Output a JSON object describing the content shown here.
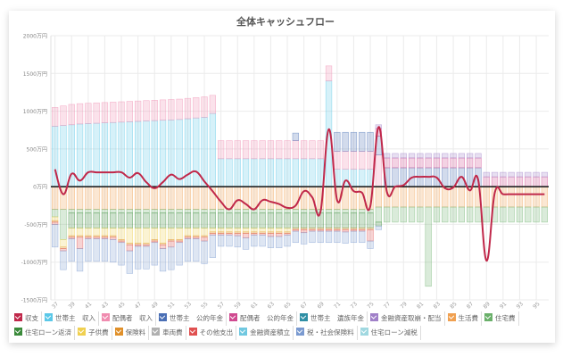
{
  "chart_data": {
    "type": "bar",
    "title": "全体キャッシュフロー",
    "ylim": [
      -1500,
      2000
    ],
    "y_ticks": [
      "2000万円",
      "1500万円",
      "1000万円",
      "500万円",
      "0万円",
      "-500万円",
      "-1000万円",
      "-1500万円"
    ],
    "y_tick_values": [
      2000,
      1500,
      1000,
      500,
      0,
      -500,
      -1000,
      -1500
    ],
    "x_tick_labels": [
      "37",
      "39",
      "41",
      "43",
      "45",
      "47",
      "49",
      "51",
      "53",
      "55",
      "57",
      "59",
      "61",
      "63",
      "65",
      "67",
      "69",
      "71",
      "73",
      "75",
      "77",
      "79",
      "81",
      "83",
      "85",
      "87",
      "89",
      "91",
      "93",
      "95"
    ],
    "ages_start": 37,
    "ages_end": 96,
    "legend_position": "bottom",
    "series": [
      {
        "name": "世帯主　収入",
        "kind": "income",
        "color": "#5bc8e8",
        "values": [
          800,
          810,
          820,
          830,
          835,
          840,
          845,
          850,
          855,
          860,
          865,
          870,
          875,
          880,
          885,
          890,
          900,
          910,
          920,
          970,
          370,
          370,
          370,
          370,
          370,
          370,
          370,
          370,
          370,
          370,
          370,
          370,
          370,
          1400,
          230,
          230,
          230,
          230,
          230,
          0,
          0,
          0,
          0,
          0,
          0,
          0,
          0,
          0,
          0,
          0,
          0,
          0,
          0,
          0,
          0,
          0,
          0,
          0,
          0,
          0
        ]
      },
      {
        "name": "配偶者　収入",
        "kind": "income",
        "color": "#f08cb0",
        "values": [
          250,
          260,
          270,
          270,
          270,
          270,
          270,
          270,
          270,
          270,
          270,
          270,
          270,
          270,
          270,
          270,
          270,
          270,
          270,
          240,
          240,
          240,
          240,
          240,
          240,
          240,
          240,
          240,
          240,
          240,
          240,
          240,
          240,
          200,
          240,
          240,
          240,
          240,
          240,
          420,
          0,
          0,
          0,
          0,
          0,
          0,
          0,
          0,
          0,
          0,
          0,
          0,
          0,
          0,
          0,
          0,
          0,
          0,
          0,
          0
        ]
      },
      {
        "name": "世帯主　公的年金",
        "kind": "income",
        "color": "#4a6fb5",
        "values": [
          0,
          0,
          0,
          0,
          0,
          0,
          0,
          0,
          0,
          0,
          0,
          0,
          0,
          0,
          0,
          0,
          0,
          0,
          0,
          0,
          0,
          0,
          0,
          0,
          0,
          0,
          0,
          0,
          0,
          100,
          0,
          0,
          0,
          0,
          250,
          250,
          250,
          250,
          250,
          250,
          250,
          250,
          250,
          250,
          250,
          250,
          250,
          250,
          250,
          250,
          250,
          250,
          0,
          0,
          0,
          0,
          0,
          0,
          0,
          0
        ]
      },
      {
        "name": "配偶者　公的年金",
        "kind": "income",
        "color": "#d04a90",
        "values": [
          0,
          0,
          0,
          0,
          0,
          0,
          0,
          0,
          0,
          0,
          0,
          0,
          0,
          0,
          0,
          0,
          0,
          0,
          0,
          0,
          0,
          0,
          0,
          0,
          0,
          0,
          0,
          0,
          0,
          0,
          0,
          0,
          0,
          0,
          0,
          0,
          0,
          0,
          0,
          100,
          130,
          130,
          130,
          130,
          130,
          130,
          130,
          130,
          130,
          130,
          130,
          130,
          130,
          130,
          130,
          130,
          130,
          130,
          130,
          130
        ]
      },
      {
        "name": "世帯主　遺族年金",
        "kind": "income",
        "color": "#2f8fa5",
        "values": [
          0,
          0,
          0,
          0,
          0,
          0,
          0,
          0,
          0,
          0,
          0,
          0,
          0,
          0,
          0,
          0,
          0,
          0,
          0,
          0,
          0,
          0,
          0,
          0,
          0,
          0,
          0,
          0,
          0,
          0,
          0,
          0,
          0,
          0,
          0,
          0,
          0,
          0,
          0,
          0,
          0,
          0,
          0,
          0,
          0,
          0,
          0,
          0,
          0,
          0,
          0,
          0,
          0,
          0,
          0,
          0,
          0,
          0,
          0,
          0
        ]
      },
      {
        "name": "金融資産取崩・配当",
        "kind": "income",
        "color": "#a080c8",
        "values": [
          0,
          0,
          0,
          0,
          0,
          0,
          0,
          0,
          0,
          0,
          0,
          0,
          0,
          0,
          0,
          0,
          0,
          0,
          0,
          0,
          0,
          0,
          0,
          0,
          0,
          0,
          0,
          0,
          0,
          0,
          0,
          0,
          0,
          0,
          0,
          0,
          0,
          0,
          0,
          50,
          60,
          60,
          60,
          60,
          60,
          60,
          60,
          60,
          60,
          60,
          60,
          60,
          60,
          60,
          60,
          60,
          60,
          60,
          60,
          60
        ]
      },
      {
        "name": "生活費",
        "kind": "expense",
        "color": "#f0a050",
        "values": [
          -300,
          -300,
          -300,
          -300,
          -300,
          -300,
          -300,
          -300,
          -300,
          -300,
          -300,
          -300,
          -300,
          -300,
          -300,
          -300,
          -300,
          -300,
          -300,
          -300,
          -300,
          -300,
          -300,
          -300,
          -300,
          -300,
          -300,
          -300,
          -300,
          -300,
          -300,
          -300,
          -300,
          -300,
          -300,
          -300,
          -300,
          -300,
          -300,
          -270,
          -270,
          -270,
          -270,
          -270,
          -270,
          -270,
          -270,
          -270,
          -270,
          -270,
          -270,
          -270,
          -270,
          -270,
          -270,
          -270,
          -270,
          -270,
          -270,
          -270
        ]
      },
      {
        "name": "住宅費",
        "kind": "expense",
        "color": "#6ab06a",
        "values": [
          -100,
          -400,
          -50,
          -50,
          -50,
          -50,
          -50,
          -50,
          -50,
          -50,
          -50,
          -50,
          -50,
          -50,
          -50,
          -50,
          -50,
          -50,
          -50,
          -50,
          -50,
          -50,
          -50,
          -50,
          -50,
          -50,
          -50,
          -50,
          -50,
          -50,
          -50,
          -50,
          -50,
          -50,
          -50,
          -50,
          -50,
          -50,
          -50,
          -200,
          -200,
          -200,
          -200,
          -200,
          -200,
          -1050,
          -200,
          -200,
          -200,
          -200,
          -200,
          -200,
          -200,
          -200,
          -200,
          -200,
          -200,
          -200,
          -200,
          -200
        ]
      },
      {
        "name": "住宅ローン返済",
        "kind": "expense",
        "color": "#3a8a3a",
        "values": [
          0,
          0,
          -200,
          -200,
          -200,
          -200,
          -200,
          -200,
          -200,
          -200,
          -200,
          -200,
          -200,
          -200,
          -200,
          -200,
          -200,
          -200,
          -200,
          -200,
          -200,
          -200,
          -200,
          -200,
          -200,
          -200,
          -200,
          -200,
          -200,
          -200,
          -200,
          -200,
          -200,
          -200,
          -200,
          -200,
          -200,
          -200,
          -200,
          -50,
          0,
          0,
          0,
          0,
          0,
          0,
          0,
          0,
          0,
          0,
          0,
          0,
          0,
          0,
          0,
          0,
          0,
          0,
          0,
          0
        ]
      },
      {
        "name": "子供費",
        "kind": "expense",
        "color": "#f0d050",
        "values": [
          -50,
          -100,
          -100,
          -100,
          -100,
          -100,
          -100,
          -100,
          -150,
          -200,
          -200,
          -200,
          -150,
          -200,
          -150,
          -150,
          -100,
          -100,
          -100,
          -50,
          -50,
          -50,
          -50,
          -50,
          -50,
          -50,
          -50,
          -50,
          -50,
          0,
          0,
          0,
          0,
          0,
          0,
          0,
          0,
          0,
          0,
          0,
          0,
          0,
          0,
          0,
          0,
          0,
          0,
          0,
          0,
          0,
          0,
          0,
          0,
          0,
          0,
          0,
          0,
          0,
          0,
          0
        ]
      },
      {
        "name": "保険料",
        "kind": "expense",
        "color": "#e0902a",
        "values": [
          -20,
          -20,
          -20,
          -20,
          -20,
          -20,
          -20,
          -20,
          -20,
          -20,
          -20,
          -20,
          -20,
          -20,
          -20,
          -20,
          -20,
          -20,
          -20,
          -20,
          -20,
          -20,
          -20,
          -20,
          -20,
          -20,
          -20,
          -20,
          -20,
          -20,
          -20,
          -20,
          -20,
          -20,
          -20,
          -20,
          -20,
          -20,
          -20,
          0,
          0,
          0,
          0,
          0,
          0,
          0,
          0,
          0,
          0,
          0,
          0,
          0,
          0,
          0,
          0,
          0,
          0,
          0,
          0,
          0
        ]
      },
      {
        "name": "車両費",
        "kind": "expense",
        "color": "#b0b0b0",
        "values": [
          0,
          0,
          0,
          0,
          0,
          0,
          0,
          0,
          0,
          0,
          0,
          0,
          0,
          0,
          0,
          0,
          0,
          0,
          0,
          0,
          0,
          0,
          0,
          0,
          0,
          0,
          0,
          0,
          0,
          0,
          0,
          0,
          0,
          0,
          0,
          0,
          0,
          0,
          0,
          0,
          0,
          0,
          0,
          0,
          0,
          0,
          0,
          0,
          0,
          0,
          0,
          0,
          0,
          0,
          0,
          0,
          0,
          0,
          0,
          0
        ]
      },
      {
        "name": "その他支出",
        "kind": "expense",
        "color": "#e05050",
        "values": [
          -30,
          -30,
          -20,
          -150,
          -20,
          -20,
          -20,
          -30,
          -20,
          -80,
          -20,
          -20,
          -20,
          -50,
          -80,
          -20,
          -20,
          -20,
          -50,
          -20,
          -20,
          -20,
          -30,
          -60,
          -20,
          -20,
          -40,
          -40,
          -20,
          -20,
          -40,
          -20,
          -20,
          -20,
          -20,
          -30,
          -20,
          -20,
          -150,
          0,
          0,
          0,
          0,
          0,
          0,
          0,
          0,
          0,
          0,
          0,
          0,
          0,
          0,
          0,
          0,
          0,
          0,
          0,
          0,
          0
        ]
      },
      {
        "name": "金融資産積立",
        "kind": "expense",
        "color": "#70c8e0",
        "values": [
          0,
          0,
          0,
          0,
          0,
          0,
          0,
          0,
          0,
          0,
          0,
          0,
          0,
          0,
          0,
          0,
          0,
          0,
          0,
          0,
          0,
          0,
          0,
          0,
          0,
          0,
          0,
          0,
          0,
          0,
          0,
          0,
          0,
          0,
          0,
          0,
          0,
          0,
          0,
          0,
          0,
          0,
          0,
          0,
          0,
          0,
          0,
          0,
          0,
          0,
          0,
          0,
          0,
          0,
          0,
          0,
          0,
          0,
          0,
          0
        ]
      },
      {
        "name": "税・社会保険料",
        "kind": "expense",
        "color": "#7a9ad0",
        "values": [
          -300,
          -250,
          -300,
          -300,
          -300,
          -300,
          -300,
          -300,
          -300,
          -300,
          -300,
          -300,
          -300,
          -300,
          -300,
          -300,
          -300,
          -300,
          -300,
          -300,
          -150,
          -150,
          -150,
          -150,
          -150,
          -150,
          -150,
          -150,
          -150,
          -150,
          -150,
          -150,
          -150,
          -150,
          -150,
          -150,
          -150,
          -150,
          -100,
          -50,
          0,
          0,
          0,
          0,
          0,
          0,
          0,
          0,
          0,
          0,
          0,
          0,
          0,
          0,
          0,
          0,
          0,
          0,
          0,
          0
        ]
      },
      {
        "name": "住宅ローン減税",
        "kind": "income",
        "color": "#a0d8e0",
        "values": [
          0,
          0,
          0,
          0,
          0,
          0,
          0,
          0,
          0,
          0,
          0,
          0,
          0,
          0,
          0,
          0,
          0,
          0,
          0,
          0,
          0,
          0,
          0,
          0,
          0,
          0,
          0,
          0,
          0,
          0,
          0,
          0,
          0,
          0,
          0,
          0,
          0,
          0,
          0,
          0,
          0,
          0,
          0,
          0,
          0,
          0,
          0,
          0,
          0,
          0,
          0,
          0,
          0,
          0,
          0,
          0,
          0,
          0,
          0,
          0
        ]
      }
    ],
    "balance": {
      "name": "収支",
      "color": "#c0284a",
      "values": [
        230,
        -100,
        170,
        80,
        190,
        190,
        190,
        190,
        190,
        120,
        180,
        60,
        -20,
        60,
        160,
        100,
        160,
        200,
        70,
        -60,
        -200,
        -300,
        -180,
        -230,
        -300,
        -180,
        -200,
        -230,
        -280,
        -250,
        -60,
        -140,
        -330,
        760,
        -180,
        80,
        -60,
        -80,
        -260,
        790,
        -70,
        0,
        20,
        120,
        130,
        130,
        120,
        -20,
        -10,
        130,
        -50,
        90,
        -980,
        -80,
        -100,
        -100,
        -100,
        -100,
        -100,
        -100
      ]
    }
  },
  "legend": [
    {
      "label": "収支",
      "color": "#c0284a"
    },
    {
      "label": "世帯主　収入",
      "color": "#5bc8e8"
    },
    {
      "label": "配偶者　収入",
      "color": "#f08cb0"
    },
    {
      "label": "世帯主　公的年金",
      "color": "#4a6fb5"
    },
    {
      "label": "配偶者　公的年金",
      "color": "#d04a90"
    },
    {
      "label": "世帯主　遺族年金",
      "color": "#2f8fa5"
    },
    {
      "label": "金融資産取崩・配当",
      "color": "#a080c8"
    },
    {
      "label": "生活費",
      "color": "#f0a050"
    },
    {
      "label": "住宅費",
      "color": "#6ab06a"
    },
    {
      "label": "住宅ローン返済",
      "color": "#3a8a3a"
    },
    {
      "label": "子供費",
      "color": "#f0d050"
    },
    {
      "label": "保険料",
      "color": "#e0902a"
    },
    {
      "label": "車両費",
      "color": "#b0b0b0"
    },
    {
      "label": "その他支出",
      "color": "#e05050"
    },
    {
      "label": "金融資産積立",
      "color": "#70c8e0"
    },
    {
      "label": "税・社会保険料",
      "color": "#7a9ad0"
    },
    {
      "label": "住宅ローン減税",
      "color": "#a0d8e0"
    }
  ]
}
